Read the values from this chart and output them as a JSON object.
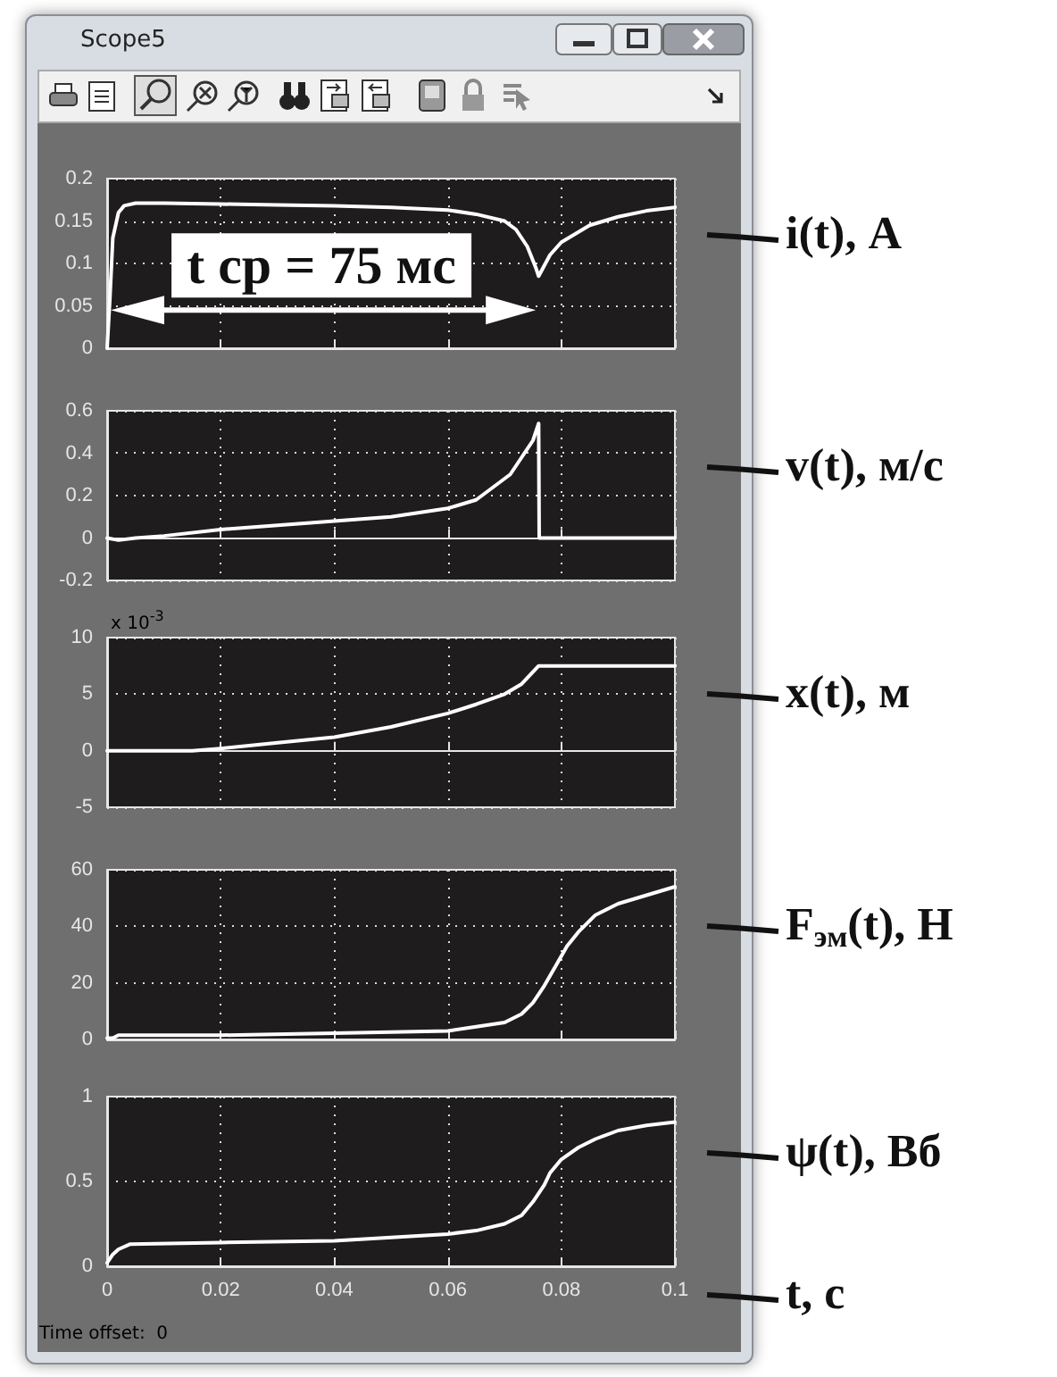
{
  "chart_data": [
    {
      "type": "line",
      "title": "Scope5",
      "ylabel": "i(t), А",
      "tick_labels": "y",
      "grid": true,
      "xlim": [
        0,
        0.1
      ],
      "xticks": [
        0,
        0.02,
        0.04,
        0.06,
        0.08,
        0.1
      ],
      "ylim": [
        0,
        0.2
      ],
      "yticks": [
        0,
        0.05,
        0.1,
        0.15,
        0.2
      ],
      "annotations": [
        "t ср = 75 мс"
      ],
      "series": [
        {
          "color": "#ffffff",
          "x": [
            0,
            0.0005,
            0.001,
            0.002,
            0.003,
            0.005,
            0.01,
            0.02,
            0.03,
            0.04,
            0.05,
            0.06,
            0.065,
            0.07,
            0.072,
            0.074,
            0.0755,
            0.076,
            0.078,
            0.08,
            0.085,
            0.09,
            0.095,
            0.1
          ],
          "values": [
            0,
            0.06,
            0.13,
            0.16,
            0.168,
            0.171,
            0.171,
            0.17,
            0.169,
            0.168,
            0.166,
            0.163,
            0.158,
            0.15,
            0.14,
            0.12,
            0.095,
            0.085,
            0.11,
            0.125,
            0.145,
            0.155,
            0.162,
            0.166
          ]
        }
      ]
    },
    {
      "type": "line",
      "ylabel": "v(t), м/с",
      "tick_labels": "y",
      "grid": true,
      "xlim": [
        0,
        0.1
      ],
      "xticks": [
        0,
        0.02,
        0.04,
        0.06,
        0.08,
        0.1
      ],
      "ylim": [
        -0.2,
        0.6
      ],
      "yticks": [
        -0.2,
        0,
        0.2,
        0.4,
        0.6
      ],
      "series": [
        {
          "color": "#ffffff",
          "x": [
            0,
            0.002,
            0.005,
            0.01,
            0.02,
            0.03,
            0.04,
            0.05,
            0.06,
            0.065,
            0.068,
            0.071,
            0.073,
            0.075,
            0.076,
            0.0761,
            0.08,
            0.1
          ],
          "values": [
            0,
            -0.01,
            0,
            0.01,
            0.04,
            0.06,
            0.08,
            0.1,
            0.14,
            0.18,
            0.24,
            0.3,
            0.38,
            0.46,
            0.54,
            0,
            0,
            0
          ]
        }
      ]
    },
    {
      "type": "line",
      "ylabel": "x(t), м",
      "tick_labels": "y",
      "grid": true,
      "xlim": [
        0,
        0.1
      ],
      "xticks": [
        0,
        0.02,
        0.04,
        0.06,
        0.08,
        0.1
      ],
      "ylim": [
        -5,
        10
      ],
      "yticks": [
        -5,
        0,
        5,
        10
      ],
      "annotations": [
        "x 10$^{-3}$"
      ],
      "series": [
        {
          "color": "#ffffff",
          "x": [
            0,
            0.015,
            0.02,
            0.03,
            0.04,
            0.05,
            0.06,
            0.065,
            0.07,
            0.073,
            0.076,
            0.08,
            0.1
          ],
          "values": [
            0,
            0,
            0.2,
            0.7,
            1.2,
            2.1,
            3.3,
            4.1,
            5,
            5.9,
            7.5,
            7.5,
            7.5
          ]
        }
      ]
    },
    {
      "type": "line",
      "ylabel": "F$_{эм}$(t), Н",
      "tick_labels": "y",
      "grid": true,
      "xlim": [
        0,
        0.1
      ],
      "xticks": [
        0,
        0.02,
        0.04,
        0.06,
        0.08,
        0.1
      ],
      "ylim": [
        0,
        60
      ],
      "yticks": [
        0,
        20,
        40,
        60
      ],
      "series": [
        {
          "color": "#ffffff",
          "x": [
            0,
            0.001,
            0.002,
            0.02,
            0.04,
            0.05,
            0.06,
            0.065,
            0.07,
            0.073,
            0.075,
            0.077,
            0.079,
            0.081,
            0.083,
            0.086,
            0.09,
            0.095,
            0.1
          ],
          "values": [
            0.5,
            0.5,
            1.5,
            1.5,
            2.2,
            2.6,
            3,
            4.5,
            6,
            9,
            13,
            19,
            26,
            33,
            38,
            44,
            48,
            51,
            54
          ]
        }
      ]
    },
    {
      "type": "line",
      "ylabel": "ψ(t), Вб",
      "xlabel": "t, с",
      "grid": true,
      "xlim": [
        0,
        0.1
      ],
      "xticks": [
        0,
        0.02,
        0.04,
        0.06,
        0.08,
        0.1
      ],
      "ylim": [
        0,
        1
      ],
      "yticks": [
        0,
        0.5,
        1
      ],
      "annotations": [
        "Time offset:  0"
      ],
      "series": [
        {
          "color": "#ffffff",
          "x": [
            0,
            0.001,
            0.002,
            0.004,
            0.02,
            0.04,
            0.06,
            0.065,
            0.07,
            0.073,
            0.075,
            0.077,
            0.078,
            0.08,
            0.083,
            0.086,
            0.09,
            0.095,
            0.1
          ],
          "values": [
            0.02,
            0.07,
            0.1,
            0.13,
            0.14,
            0.15,
            0.19,
            0.21,
            0.25,
            0.3,
            0.38,
            0.48,
            0.55,
            0.63,
            0.7,
            0.75,
            0.8,
            0.83,
            0.85
          ]
        }
      ]
    }
  ]
}
